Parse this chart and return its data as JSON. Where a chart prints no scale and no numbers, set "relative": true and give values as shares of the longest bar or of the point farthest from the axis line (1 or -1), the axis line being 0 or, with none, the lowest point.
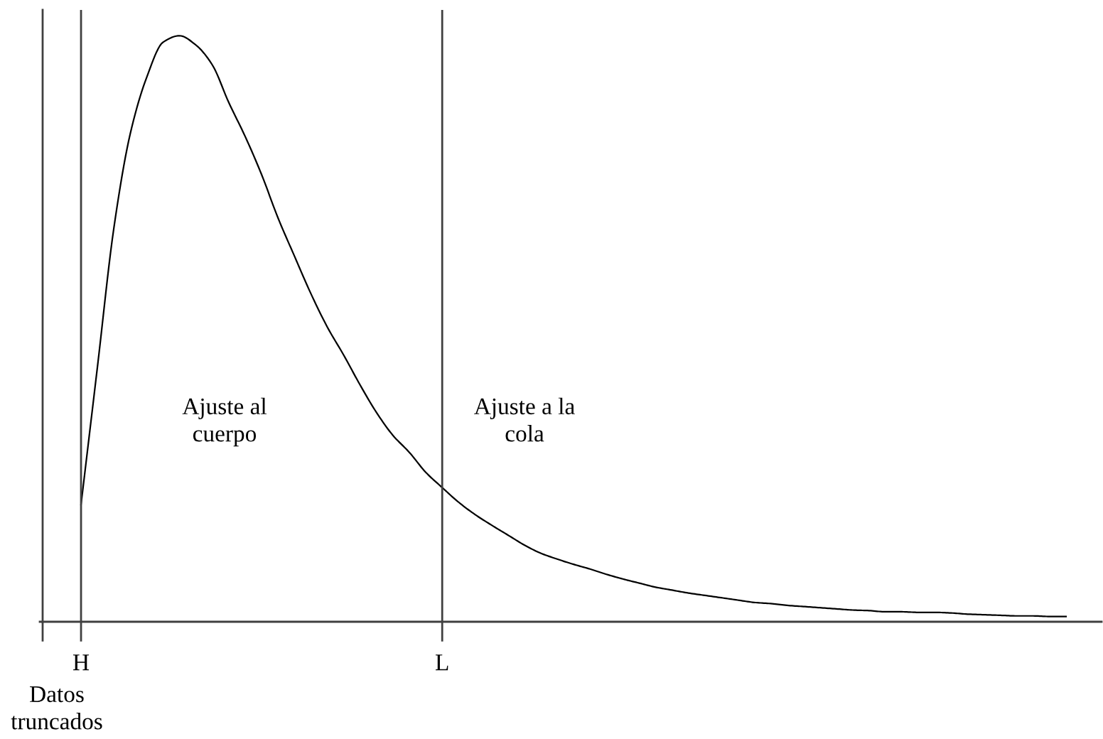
{
  "chart_data": {
    "type": "line",
    "relative": true,
    "categories": [
      "H",
      null,
      null,
      null,
      null,
      null,
      null,
      null,
      null,
      null,
      null,
      null,
      null,
      null,
      null,
      null,
      null,
      null,
      null,
      null,
      null,
      null,
      "L",
      null,
      null,
      null,
      null,
      null,
      null,
      null,
      null,
      null,
      null,
      null,
      null,
      null,
      null,
      null,
      null,
      null,
      null,
      null,
      null,
      null,
      null,
      null,
      null,
      null,
      null,
      null,
      null,
      null,
      null,
      null,
      null,
      null,
      null,
      null,
      null,
      null,
      null
    ],
    "series": [
      {
        "color": "#000000",
        "values": [
          0.2,
          0.435,
          0.672,
          0.833,
          0.929,
          0.989,
          1.0,
          0.984,
          0.95,
          0.886,
          0.828,
          0.763,
          0.689,
          0.624,
          0.56,
          0.503,
          0.455,
          0.404,
          0.357,
          0.318,
          0.289,
          0.255,
          0.229,
          0.204,
          0.183,
          0.165,
          0.148,
          0.131,
          0.117,
          0.107,
          0.098,
          0.09,
          0.081,
          0.073,
          0.066,
          0.059,
          0.054,
          0.049,
          0.045,
          0.041,
          0.037,
          0.033,
          0.031,
          0.028,
          0.026,
          0.024,
          0.022,
          0.02,
          0.019,
          0.017,
          0.017,
          0.016,
          0.016,
          0.015,
          0.013,
          0.012,
          0.011,
          0.01,
          0.01,
          0.009,
          0.009
        ]
      }
    ],
    "ref_lines": [
      {
        "axis": "x",
        "value": "H",
        "color": "#404040"
      },
      {
        "axis": "x",
        "value": "L",
        "color": "#404040"
      }
    ],
    "annotations": [
      "Ajuste al\ncuerpo",
      "Ajuste a la\ncola",
      "Datos\ntruncados"
    ]
  }
}
